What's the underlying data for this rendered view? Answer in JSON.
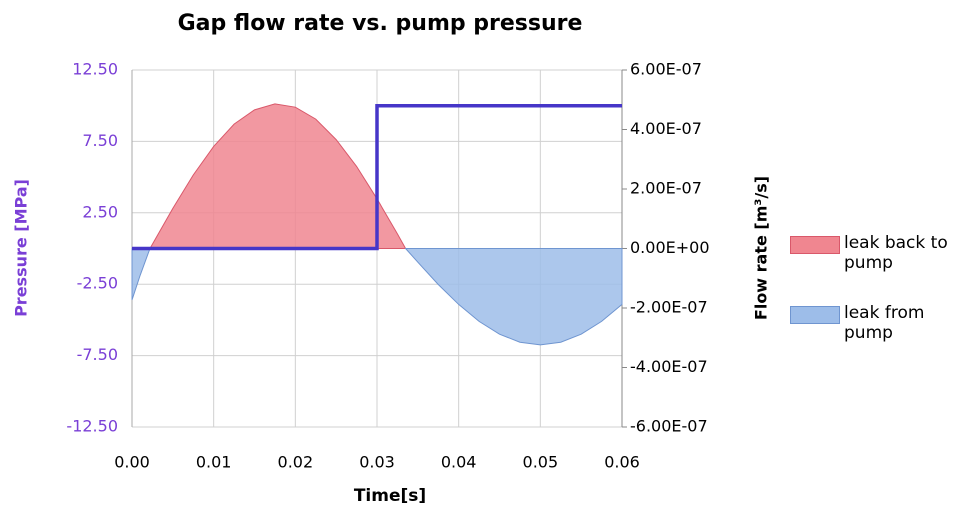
{
  "chart_data": {
    "type": "line",
    "title": "Gap flow rate vs. pump pressure",
    "xlabel": "Time[s]",
    "ylabel": "Pressure [MPa]",
    "y2label": "Flow rate [m³/s]",
    "xlim": [
      0,
      0.06
    ],
    "xticks": [
      {
        "value": 0,
        "label": "0.00"
      },
      {
        "value": 0.01,
        "label": "0.01"
      },
      {
        "value": 0.02,
        "label": "0.02"
      },
      {
        "value": 0.03,
        "label": "0.03"
      },
      {
        "value": 0.04,
        "label": "0.04"
      },
      {
        "value": 0.05,
        "label": "0.05"
      },
      {
        "value": 0.06,
        "label": "0.06"
      }
    ],
    "ylim": [
      -12.5,
      12.5
    ],
    "yticks": [
      {
        "value": 12.5,
        "label": "12.50"
      },
      {
        "value": 7.5,
        "label": "7.50"
      },
      {
        "value": 2.5,
        "label": "2.50"
      },
      {
        "value": -2.5,
        "label": "-2.50"
      },
      {
        "value": -7.5,
        "label": "-7.50"
      },
      {
        "value": -12.5,
        "label": "-12.50"
      }
    ],
    "y2lim": [
      -6e-07,
      6e-07
    ],
    "y2ticks": [
      {
        "value": 6e-07,
        "label": "6.00E-07"
      },
      {
        "value": 4e-07,
        "label": "4.00E-07"
      },
      {
        "value": 2e-07,
        "label": "2.00E-07"
      },
      {
        "value": 0,
        "label": "0.00E+00"
      },
      {
        "value": -2e-07,
        "label": "-2.00E-07"
      },
      {
        "value": -4e-07,
        "label": "-4.00E-07"
      },
      {
        "value": -6e-07,
        "label": "-6.00E-07"
      }
    ],
    "grid": true,
    "legend": "right",
    "series": [
      {
        "color": "#4636c8",
        "style": "line",
        "x": [
          0,
          0.03,
          0.03,
          0.06
        ],
        "values": [
          0,
          0,
          10,
          10
        ]
      },
      {
        "name": "leak back to pump",
        "color": "#f08690",
        "axis": "y2",
        "style": "area",
        "x": [
          0.0022,
          0.005,
          0.0075,
          0.01,
          0.0125,
          0.015,
          0.0175,
          0.02,
          0.0225,
          0.025,
          0.0275,
          0.03,
          0.0325,
          0.0335
        ],
        "values": [
          0,
          1.35e-07,
          2.47e-07,
          3.43e-07,
          4.18e-07,
          4.66e-07,
          4.86e-07,
          4.75e-07,
          4.35e-07,
          3.66e-07,
          2.76e-07,
          1.67e-07,
          4.9e-08,
          0
        ]
      },
      {
        "name": "leak from pump",
        "color": "#9dbde9",
        "axis": "y2",
        "style": "area",
        "x": [
          0,
          0.001,
          0.0022,
          null,
          0.0335,
          0.035,
          0.0375,
          0.04,
          0.0425,
          0.045,
          0.0475,
          0.05,
          0.0525,
          0.055,
          0.0575,
          0.06
        ],
        "values": [
          -1.73e-07,
          -9e-08,
          0,
          null,
          0,
          -4.6e-08,
          -1.21e-07,
          -1.88e-07,
          -2.45e-07,
          -2.88e-07,
          -3.15e-07,
          -3.24e-07,
          -3.15e-07,
          -2.88e-07,
          -2.45e-07,
          -1.88e-07
        ]
      }
    ]
  }
}
